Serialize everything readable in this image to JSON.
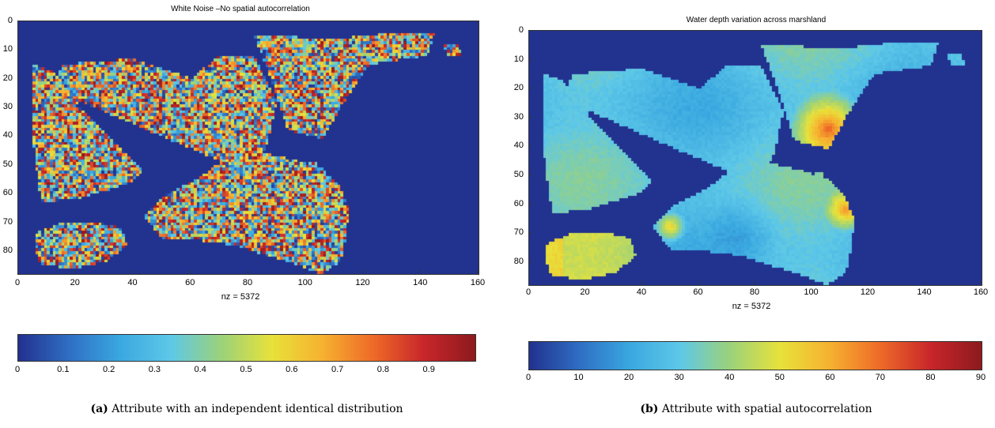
{
  "chart_data": [
    {
      "type": "heatmap",
      "panel_id": "a",
      "title": "White Noise –No spatial autocorrelation",
      "xlabel": "nz = 5372",
      "x_ticks": [
        0,
        20,
        40,
        60,
        80,
        100,
        120,
        140,
        160
      ],
      "y_ticks": [
        0,
        10,
        20,
        30,
        40,
        50,
        60,
        70,
        80
      ],
      "xlim": [
        0,
        160
      ],
      "ylim": [
        0,
        88
      ],
      "y_reversed": true,
      "nonzero_count": 5372,
      "pattern": "random",
      "colorbar": {
        "ticks": [
          "0",
          "0.1",
          "0.2",
          "0.3",
          "0.4",
          "0.5",
          "0.6",
          "0.7",
          "0.8",
          "0.9"
        ],
        "range": [
          0,
          1
        ]
      },
      "caption_tag": "(a)",
      "caption_text": "Attribute with an independent identical distribution"
    },
    {
      "type": "heatmap",
      "panel_id": "b",
      "title": "Water depth variation across marshland",
      "xlabel": "nz = 5372",
      "x_ticks": [
        0,
        20,
        40,
        60,
        80,
        100,
        120,
        140,
        160
      ],
      "y_ticks": [
        0,
        10,
        20,
        30,
        40,
        50,
        60,
        70,
        80
      ],
      "xlim": [
        0,
        160
      ],
      "ylim": [
        0,
        88
      ],
      "y_reversed": true,
      "nonzero_count": 5372,
      "pattern": "smooth",
      "colorbar": {
        "ticks": [
          "0",
          "10",
          "20",
          "30",
          "40",
          "50",
          "60",
          "70",
          "80",
          "90"
        ],
        "range": [
          0,
          90
        ]
      },
      "caption_tag": "(b)",
      "caption_text": "Attribute with spatial autocorrelation"
    }
  ],
  "colors": {
    "background_cell": "#22328f",
    "colormap": [
      "#22328f",
      "#2f6fc4",
      "#3aa8e0",
      "#5ec8e8",
      "#9cd27a",
      "#e8e23a",
      "#f6b130",
      "#ee6a28",
      "#c8262a",
      "#8e1a1e"
    ]
  }
}
